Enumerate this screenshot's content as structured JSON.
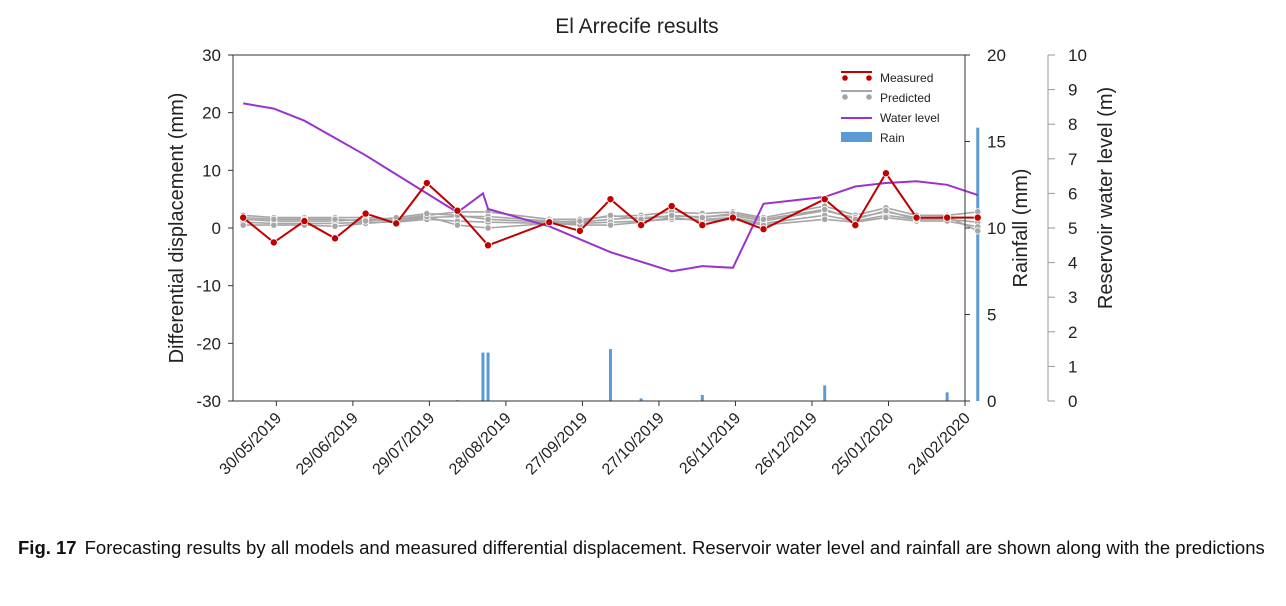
{
  "chart_data": {
    "type": "line",
    "title": "El Arrecife results",
    "ylabel": "Differential displacement (mm)",
    "ylabel_right": "Rainfall (mm)",
    "ylabel_right2": "Reservoir water level (m)",
    "ylim": [
      -30,
      30
    ],
    "yticks": [
      "30",
      "20",
      "10",
      "0",
      "-10",
      "-20",
      "-30"
    ],
    "ylim_rain": [
      0,
      20
    ],
    "yticks_rain": [
      "20",
      "15",
      "10",
      "5",
      "0"
    ],
    "ylim_water": [
      0,
      10
    ],
    "yticks_water": [
      "10",
      "9",
      "8",
      "7",
      "6",
      "5",
      "4",
      "3",
      "2",
      "1",
      "0"
    ],
    "x_range_days": [
      -4,
      283
    ],
    "x_ticks": [
      {
        "day": 13,
        "label": "30/05/2019"
      },
      {
        "day": 43,
        "label": "29/06/2019"
      },
      {
        "day": 73,
        "label": "29/07/2019"
      },
      {
        "day": 103,
        "label": "28/08/2019"
      },
      {
        "day": 133,
        "label": "27/09/2019"
      },
      {
        "day": 163,
        "label": "27/10/2019"
      },
      {
        "day": 193,
        "label": "26/11/2019"
      },
      {
        "day": 223,
        "label": "26/12/2019"
      },
      {
        "day": 253,
        "label": "25/01/2020"
      },
      {
        "day": 283,
        "label": "24/02/2020"
      }
    ],
    "legend": {
      "position": "top-right",
      "measured": "Measured",
      "predicted": "Predicted",
      "water": "Water level",
      "rain": "Rain"
    },
    "measured": {
      "name": "Measured",
      "x": [
        0,
        12,
        24,
        36,
        48,
        60,
        72,
        84,
        96,
        120,
        132,
        144,
        156,
        168,
        180,
        192,
        204,
        228,
        240,
        252,
        264,
        276,
        288
      ],
      "y": [
        1.8,
        -2.5,
        1.2,
        -1.8,
        2.5,
        0.8,
        7.8,
        3.0,
        -3.0,
        1.0,
        -0.5,
        5.0,
        0.5,
        3.8,
        0.5,
        1.8,
        -0.2,
        5.0,
        0.5,
        9.5,
        1.8,
        1.8,
        1.8
      ]
    },
    "predicted": [
      {
        "name": "Predicted 1",
        "x": [
          0,
          12,
          24,
          36,
          48,
          60,
          72,
          84,
          96,
          120,
          132,
          144,
          156,
          168,
          180,
          192,
          204,
          228,
          240,
          252,
          264,
          276,
          288
        ],
        "y": [
          2.2,
          1.8,
          1.8,
          1.8,
          1.8,
          1.5,
          2.2,
          2.8,
          2.8,
          1.5,
          1.5,
          2.0,
          2.2,
          2.8,
          2.5,
          2.8,
          1.8,
          3.8,
          2.2,
          3.5,
          2.2,
          2.2,
          2.8
        ]
      },
      {
        "name": "Predicted 2",
        "x": [
          0,
          12,
          24,
          36,
          48,
          60,
          72,
          84,
          96,
          120,
          132,
          144,
          156,
          168,
          180,
          192,
          204,
          228,
          240,
          252,
          264,
          276,
          288
        ],
        "y": [
          1.5,
          1.2,
          1.2,
          1.2,
          1.5,
          1.2,
          1.8,
          2.0,
          2.0,
          1.2,
          1.0,
          1.5,
          1.8,
          2.0,
          2.0,
          2.2,
          1.2,
          3.0,
          1.8,
          2.8,
          1.8,
          1.8,
          1.8
        ]
      },
      {
        "name": "Predicted 3",
        "x": [
          0,
          12,
          24,
          36,
          48,
          60,
          72,
          84,
          96,
          120,
          132,
          144,
          156,
          168,
          180,
          192,
          204,
          228,
          240,
          252,
          264,
          276,
          288
        ],
        "y": [
          1.0,
          0.8,
          0.8,
          0.8,
          1.0,
          1.0,
          1.5,
          1.2,
          1.0,
          0.8,
          0.8,
          1.0,
          1.2,
          1.5,
          1.5,
          1.8,
          0.8,
          2.2,
          1.2,
          2.2,
          1.5,
          1.5,
          1.0
        ]
      },
      {
        "name": "Predicted 4",
        "x": [
          0,
          12,
          24,
          36,
          48,
          60,
          72,
          84,
          96,
          120,
          132,
          144,
          156,
          168,
          180,
          192,
          204,
          228,
          240,
          252,
          264,
          276,
          288
        ],
        "y": [
          0.5,
          0.5,
          0.5,
          0.3,
          0.8,
          1.2,
          2.0,
          0.5,
          0.0,
          0.8,
          0.5,
          0.5,
          1.0,
          1.8,
          1.2,
          1.5,
          0.5,
          1.5,
          1.0,
          1.8,
          1.2,
          1.2,
          0.2
        ]
      },
      {
        "name": "Predicted 5",
        "x": [
          0,
          12,
          24,
          36,
          48,
          60,
          72,
          84,
          96,
          120,
          132,
          144,
          156,
          168,
          180,
          192,
          204,
          228,
          240,
          252,
          264,
          276,
          288
        ],
        "y": [
          1.8,
          1.5,
          1.5,
          1.5,
          1.2,
          1.8,
          2.5,
          2.2,
          1.5,
          1.0,
          1.2,
          2.2,
          1.5,
          2.2,
          1.8,
          2.5,
          1.5,
          3.2,
          1.5,
          3.0,
          1.5,
          2.0,
          -0.5
        ]
      }
    ],
    "water_level": {
      "name": "Water level",
      "x": [
        0,
        12,
        24,
        36,
        48,
        60,
        72,
        84,
        94,
        96,
        120,
        144,
        168,
        180,
        192,
        204,
        228,
        240,
        252,
        264,
        276,
        288
      ],
      "y": [
        8.6,
        8.45,
        8.1,
        7.6,
        7.1,
        6.55,
        6.0,
        5.45,
        6.0,
        5.55,
        5.05,
        4.3,
        3.75,
        3.9,
        3.85,
        5.7,
        5.9,
        6.2,
        6.3,
        6.35,
        6.25,
        5.95
      ]
    },
    "rain": {
      "name": "Rain",
      "x": [
        84,
        94,
        96,
        144,
        156,
        180,
        228,
        276,
        288
      ],
      "y": [
        0.05,
        2.8,
        2.8,
        3.0,
        0.15,
        0.35,
        0.9,
        0.5,
        15.8
      ]
    }
  },
  "caption": {
    "label": "Fig. 17",
    "text": "Forecasting results by all models and measured differential displacement. Reservoir water level and rainfall are shown along with the predictions"
  }
}
